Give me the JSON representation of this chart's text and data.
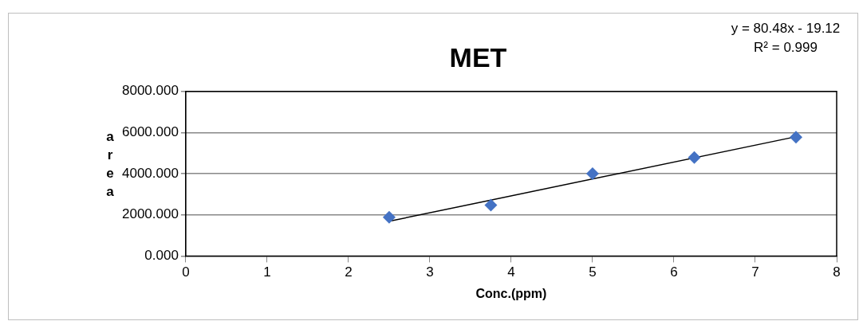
{
  "chart_data": {
    "type": "scatter",
    "title": "MET",
    "xlabel": "Conc.(ppm)",
    "ylabel": "area",
    "xlim": [
      0,
      8
    ],
    "xticks": [
      0,
      1,
      2,
      3,
      4,
      5,
      6,
      7,
      8
    ],
    "ylim": [
      0,
      8000
    ],
    "yticks": [
      {
        "value": 0,
        "label": "0.000"
      },
      {
        "value": 2000,
        "label": "2000.000"
      },
      {
        "value": 4000,
        "label": "4000.000"
      },
      {
        "value": 6000,
        "label": "6000.000"
      },
      {
        "value": 8000,
        "label": "8000.000"
      }
    ],
    "grid": "y",
    "legend": false,
    "marker": "diamond",
    "annotations": [
      "y = 80.48x - 19.12",
      "R² = 0.999"
    ],
    "series": [
      {
        "color": "#4472c4",
        "x": [
          2.5,
          3.75,
          5,
          6.25,
          7.5
        ],
        "values": [
          1880,
          2470,
          4000,
          4790,
          5780
        ]
      },
      {
        "type": "line",
        "color": "#000000",
        "marker": "none",
        "line_style": "solid",
        "x": [
          2.5,
          7.5
        ],
        "values": [
          1690,
          5800
        ]
      }
    ]
  }
}
